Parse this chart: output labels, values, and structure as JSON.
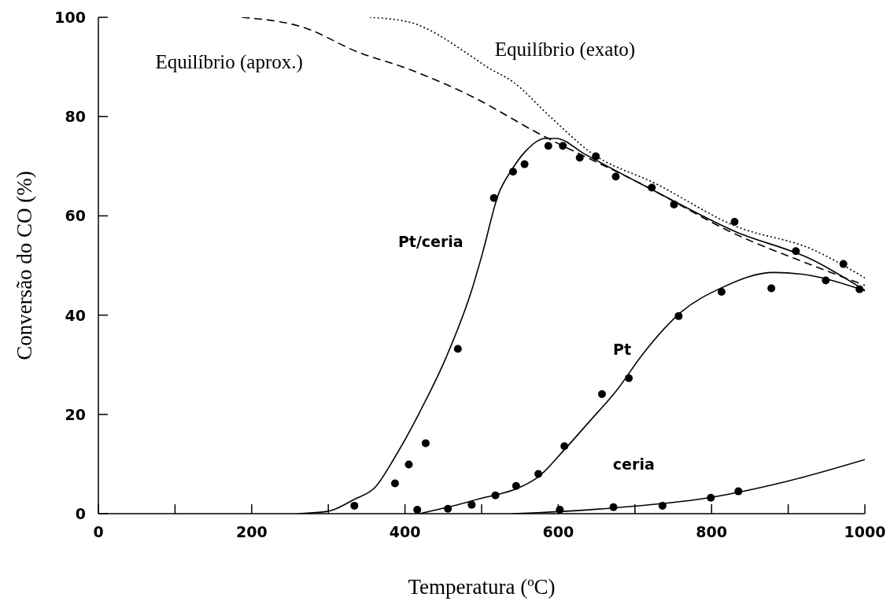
{
  "chart_data": {
    "type": "scatter",
    "xlabel": "Temperatura (ºC)",
    "ylabel": "Conversão do CO (%)",
    "xlim": [
      0,
      1000
    ],
    "ylim": [
      0,
      100
    ],
    "xticks": [
      0,
      {
        "value": 100,
        "label": null
      },
      200,
      {
        "value": 300,
        "label": null
      },
      400,
      {
        "value": 500,
        "label": null
      },
      600,
      {
        "value": 700,
        "label": null
      },
      800,
      {
        "value": 900,
        "label": null
      },
      1000
    ],
    "yticks": [
      0,
      20,
      40,
      60,
      80,
      100
    ],
    "grid": false,
    "legend": false,
    "marker": "circle",
    "series": [
      {
        "color": "#000000",
        "x": [
          334,
          387,
          405,
          427,
          469,
          516,
          541,
          556,
          587,
          606,
          628,
          649,
          675,
          722,
          751,
          830,
          910,
          972
        ],
        "values": [
          1.6,
          6.1,
          9.9,
          14.2,
          33.2,
          63.6,
          68.9,
          70.4,
          74.1,
          74.1,
          71.7,
          72,
          67.9,
          65.7,
          62.3,
          58.8,
          52.9,
          50.3
        ]
      },
      {
        "color": "#000000",
        "x": [
          416,
          456,
          487,
          518,
          545,
          574,
          608,
          657,
          692,
          757,
          813,
          878,
          949,
          993
        ],
        "values": [
          0.8,
          1,
          1.8,
          3.7,
          5.6,
          8,
          13.6,
          24.1,
          27.3,
          39.8,
          44.7,
          45.4,
          47,
          45.2
        ]
      },
      {
        "color": "#000000",
        "x": [
          602,
          672,
          736,
          799,
          835
        ],
        "values": [
          0.8,
          1.3,
          1.6,
          3.2,
          4.5
        ]
      },
      {
        "type": "line",
        "name": "Pt/ceria",
        "marker": "none",
        "line_style": "solid",
        "color": "#000000",
        "x": [
          260,
          300,
          334,
          361,
          385,
          419,
          454,
          488,
          501,
          522,
          539,
          556,
          583,
          597,
          635,
          727,
          830,
          932,
          1000
        ],
        "values": [
          0,
          0.5,
          2.9,
          5.3,
          10.9,
          20.4,
          31.6,
          45.5,
          52.4,
          64.4,
          69.2,
          72.8,
          75.6,
          75.6,
          72.4,
          64.9,
          56.9,
          51.1,
          45
        ]
      },
      {
        "type": "line",
        "name": "Pt",
        "marker": "none",
        "line_style": "solid",
        "color": "#000000",
        "x": [
          419,
          488,
          573,
          608,
          642,
          676,
          710,
          761,
          813,
          881,
          932,
          1000
        ],
        "values": [
          0,
          2.6,
          7.3,
          12.9,
          18.8,
          24.8,
          32.1,
          40.7,
          45.5,
          48.6,
          47.9,
          44.9
        ]
      },
      {
        "type": "line",
        "name": "ceria",
        "marker": "none",
        "line_style": "solid",
        "color": "#000000",
        "x": [
          540,
          573,
          659,
          796,
          898,
          1000
        ],
        "values": [
          0,
          0.2,
          1,
          3.2,
          6.5,
          10.9
        ]
      },
      {
        "type": "line",
        "name": "Equilíbrio (aprox.)",
        "marker": "none",
        "line_style": "dashed",
        "color": "#000000",
        "x": [
          187,
          269,
          337,
          406,
          488,
          573,
          710,
          830,
          932,
          1000
        ],
        "values": [
          100,
          97.9,
          93.1,
          89.5,
          84,
          76.7,
          66.3,
          56.4,
          50,
          46
        ]
      },
      {
        "type": "line",
        "name": "Equilíbrio (exato)",
        "marker": "none",
        "line_style": "dotted",
        "color": "#000000",
        "x": [
          354,
          406,
          488,
          508,
          539,
          590,
          642,
          727,
          830,
          932,
          1000
        ],
        "values": [
          100,
          99,
          92,
          89.9,
          87.2,
          79.9,
          72.8,
          66.5,
          58,
          53.2,
          47.5
        ]
      }
    ]
  }
}
